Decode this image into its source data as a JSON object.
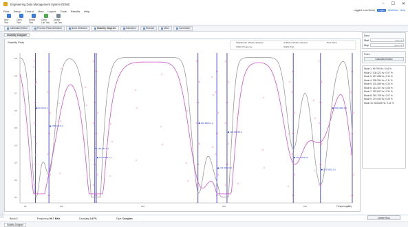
{
  "window": {
    "title": "Engineering Data Management System EDMS",
    "controls": [
      "–",
      "☐",
      "✕"
    ]
  },
  "menu": {
    "items": [
      "Files",
      "Setup",
      "Control",
      "View",
      "Layout",
      "Tools",
      "Results",
      "Help"
    ],
    "right": {
      "user": "Logged in as Demo",
      "chip": "Login",
      "link1": "Workflow",
      "link2": "Help"
    }
  },
  "toolbar": {
    "items": [
      {
        "label": "New Test",
        "icon": "new-test-icon"
      },
      {
        "label": "Open Test",
        "icon": "open-test-icon"
      },
      {
        "label": "Delete Test",
        "icon": "delete-test-icon"
      },
      {
        "label": "Open Lab Test",
        "icon": "open-lab-test-icon"
      },
      {
        "label": "Delete Lab Test",
        "icon": "delete-lab-test-icon"
      }
    ]
  },
  "tabs": [
    {
      "label": "Calibration Editor",
      "active": false
    },
    {
      "label": "Process Parts Selection",
      "active": false
    },
    {
      "label": "Band Selection",
      "active": false
    },
    {
      "label": "Stability Diagram",
      "active": true
    },
    {
      "label": "Animation",
      "active": false
    },
    {
      "label": "Shortcut",
      "active": false
    },
    {
      "label": "MAC",
      "active": false
    },
    {
      "label": "Correlation",
      "active": false
    }
  ],
  "subtab": "Stability Diagram",
  "chart": {
    "title": "Stability Plots",
    "legend": [
      "Stabilize No. (Mode Indicator)",
      "Unfiltered Modes selected",
      "New Poles"
    ],
    "legend2": "Stable Frequency",
    "legend3": "Stable Pole",
    "xaxis_label": "Frequency (Hz)",
    "xticks": [
      "90",
      "100",
      "150",
      "200",
      "250",
      "300"
    ],
    "yticks": [
      "0.9",
      "0.8",
      "0.7",
      "0.6",
      "0.5",
      "0.4",
      "0.3",
      "0.2",
      "0.1"
    ],
    "mode_labels": [
      "99.790,1,1",
      "108.322,0,0",
      "138.254,2,2",
      "137.2880,1,1",
      "202.4894,1,1",
      "214.4074,0,0",
      "220.8470,1,4",
      "262.7049,0,0",
      "279.9303,1,3",
      "302.6090,0,0"
    ]
  },
  "chart_data": {
    "type": "line",
    "title": "Stability Plots",
    "xlabel": "Frequency (Hz)",
    "xlim": [
      90,
      300
    ],
    "ylim": [
      0,
      1
    ],
    "mode_frequencies": [
      99.79,
      108.32,
      137.29,
      138.25,
      202.49,
      214.41,
      220.85,
      262.7,
      279.93,
      302.61
    ],
    "series": [
      {
        "name": "Stabilize No. (Mode Indicator)"
      },
      {
        "name": "Unfiltered Modes selected"
      }
    ]
  },
  "right_panel": {
    "section1": "Band",
    "start_label": "Start",
    "start_value": "90.0 Hz",
    "stop_label": "Stop",
    "stop_value": "300.0 Hz",
    "section2": "Poles",
    "calc_button": "Calculate Modes",
    "modes": [
      "Mode 1: 99.790 Hz, 0.04 %",
      "Mode 2: 108.322 Hz, 0.07 %",
      "Mode 3: 137.288 Hz, 0.12 %",
      "Mode 4: 138.254 Hz, 0.11 %",
      "Mode 5: 202.489 Hz, 0.20 %",
      "Mode 6: 214.407 Hz, 0.08 %",
      "Mode 7: 220.847 Hz, 0.31 %",
      "Mode 8: 262.705 Hz, 0.07 %",
      "Mode 9: 279.930 Hz, 0.09 %",
      "Mode 10: 302.609 Hz, 0.11 %"
    ],
    "delete_button": "Delete Row"
  },
  "status": {
    "block_label": "Block",
    "block_value": "1",
    "freq_label": "Frequency",
    "freq_value": "99.7 MHz",
    "damping_label": "Damping",
    "damping_value": "0.47%",
    "type_label": "Type",
    "type_value": "Complex"
  },
  "bottom_tab": "Stability Diagram"
}
